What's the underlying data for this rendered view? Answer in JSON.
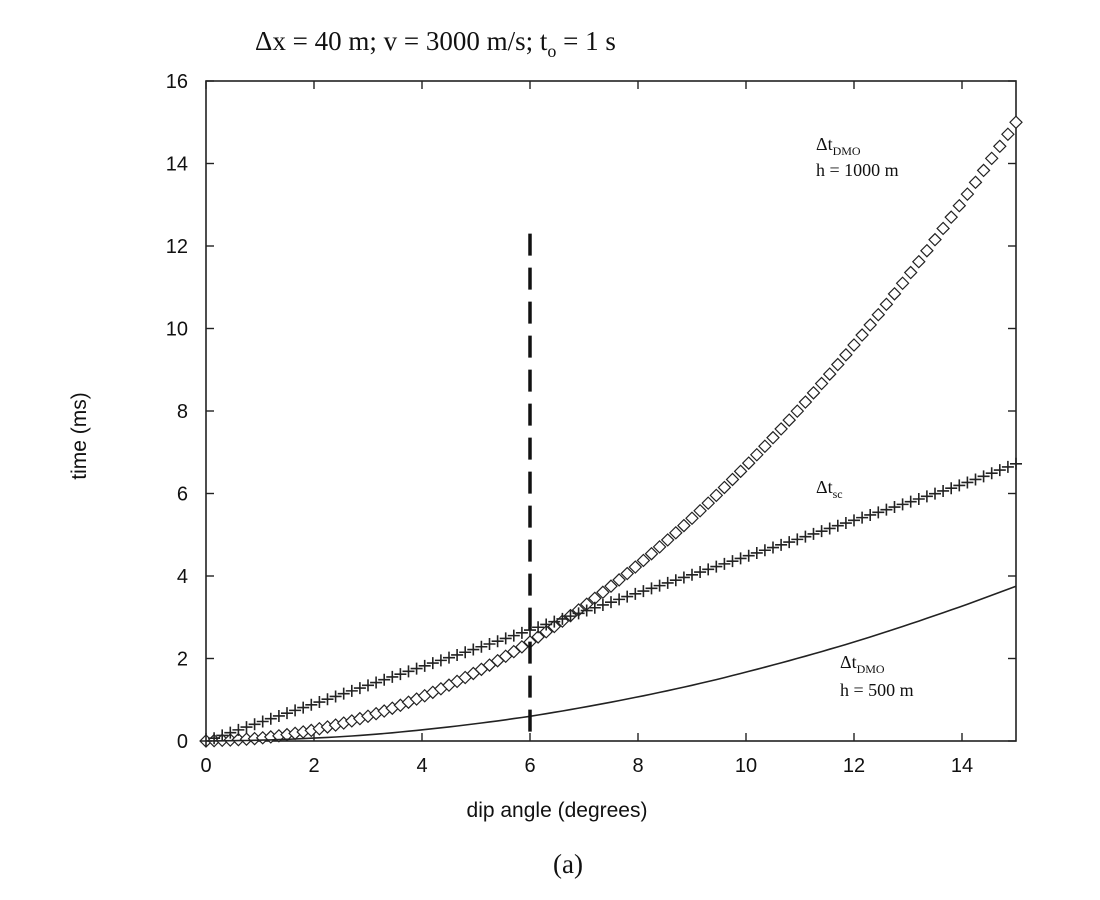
{
  "chart_data": {
    "type": "line",
    "title": "Δx = 40 m; v = 3000 m/s; t",
    "title_sub": "o",
    "title_tail": " = 1 s",
    "xlabel": "dip angle (degrees)",
    "ylabel": "time (ms)",
    "caption": "(a)",
    "xlim": [
      0,
      15
    ],
    "ylim": [
      0,
      16
    ],
    "xticks": [
      0,
      2,
      4,
      6,
      8,
      10,
      12,
      14
    ],
    "yticks": [
      0,
      2,
      4,
      6,
      8,
      10,
      12,
      14,
      16
    ],
    "grid": false,
    "series": [
      {
        "key": "dmo1000",
        "marker": "diamond",
        "label_main": "Δt",
        "label_sub": "DMO",
        "label_line2": "h = 1000 m",
        "x": [
          0,
          1,
          2,
          3,
          4,
          5,
          6,
          7,
          8,
          9,
          10,
          11,
          12,
          13,
          14,
          15
        ],
        "y": [
          0,
          0.07,
          0.27,
          0.6,
          1.07,
          1.67,
          2.4,
          3.27,
          4.27,
          5.4,
          6.67,
          8.07,
          9.6,
          11.27,
          13.07,
          15.0
        ]
      },
      {
        "key": "tsc",
        "marker": "plus",
        "label_main": "Δt",
        "label_sub": "sc",
        "label_line2": "",
        "x": [
          0,
          1,
          2,
          3,
          4,
          5,
          6,
          7,
          8,
          9,
          10,
          11,
          12,
          13,
          14,
          15
        ],
        "y": [
          0,
          0.45,
          0.9,
          1.35,
          1.8,
          2.24,
          2.69,
          3.14,
          3.59,
          4.03,
          4.47,
          4.91,
          5.35,
          5.78,
          6.22,
          6.72
        ]
      },
      {
        "key": "dmo500",
        "marker": "none",
        "label_main": "Δt",
        "label_sub": "DMO",
        "label_line2": "h = 500 m",
        "x": [
          0,
          1,
          2,
          3,
          4,
          5,
          6,
          7,
          8,
          9,
          10,
          11,
          12,
          13,
          14,
          15
        ],
        "y": [
          0,
          0.02,
          0.07,
          0.15,
          0.27,
          0.42,
          0.6,
          0.82,
          1.07,
          1.35,
          1.67,
          2.02,
          2.4,
          2.82,
          3.27,
          3.75
        ]
      }
    ],
    "reference_line": {
      "x": 6,
      "y_top": 12.3,
      "style": "dashed"
    }
  }
}
